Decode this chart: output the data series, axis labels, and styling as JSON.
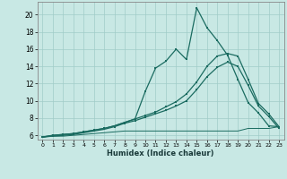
{
  "xlabel": "Humidex (Indice chaleur)",
  "bg_color": "#c8e8e4",
  "grid_color": "#a0ccc8",
  "line_color": "#1a6b60",
  "xlim": [
    -0.5,
    23.5
  ],
  "ylim": [
    5.5,
    21.5
  ],
  "xticks": [
    0,
    1,
    2,
    3,
    4,
    5,
    6,
    7,
    8,
    9,
    10,
    11,
    12,
    13,
    14,
    15,
    16,
    17,
    18,
    19,
    20,
    21,
    22,
    23
  ],
  "yticks": [
    6,
    8,
    10,
    12,
    14,
    16,
    18,
    20
  ],
  "line1_x": [
    0,
    1,
    2,
    3,
    4,
    5,
    6,
    7,
    8,
    9,
    10,
    11,
    12,
    13,
    14,
    15,
    16,
    17,
    18,
    19,
    20,
    21,
    22,
    23
  ],
  "line1_y": [
    5.8,
    6.0,
    6.1,
    6.2,
    6.4,
    6.6,
    6.8,
    7.1,
    7.5,
    7.9,
    11.1,
    13.8,
    14.6,
    16.0,
    14.8,
    20.8,
    18.5,
    17.0,
    15.3,
    12.5,
    9.8,
    8.6,
    7.1,
    7.0
  ],
  "line2_x": [
    0,
    1,
    2,
    3,
    4,
    5,
    6,
    7,
    8,
    9,
    10,
    11,
    12,
    13,
    14,
    15,
    16,
    17,
    18,
    19,
    20,
    21,
    22,
    23
  ],
  "line2_y": [
    5.8,
    6.0,
    6.1,
    6.2,
    6.4,
    6.6,
    6.8,
    7.1,
    7.5,
    7.9,
    8.3,
    8.7,
    9.3,
    9.9,
    10.8,
    12.2,
    14.0,
    15.2,
    15.5,
    15.2,
    12.5,
    9.7,
    8.5,
    7.0
  ],
  "line3_x": [
    0,
    1,
    2,
    3,
    4,
    5,
    6,
    7,
    8,
    9,
    10,
    11,
    12,
    13,
    14,
    15,
    16,
    17,
    18,
    19,
    20,
    21,
    22,
    23
  ],
  "line3_y": [
    5.8,
    5.9,
    6.0,
    6.1,
    6.3,
    6.5,
    6.7,
    7.0,
    7.4,
    7.7,
    8.1,
    8.5,
    8.9,
    9.4,
    10.0,
    11.3,
    12.8,
    13.9,
    14.5,
    14.0,
    11.8,
    9.4,
    8.2,
    6.8
  ],
  "line4_x": [
    0,
    1,
    2,
    3,
    4,
    5,
    6,
    7,
    8,
    9,
    10,
    11,
    12,
    13,
    14,
    15,
    16,
    17,
    18,
    19,
    20,
    21,
    22,
    23
  ],
  "line4_y": [
    5.8,
    5.9,
    5.9,
    6.0,
    6.1,
    6.2,
    6.3,
    6.4,
    6.5,
    6.5,
    6.5,
    6.5,
    6.5,
    6.5,
    6.5,
    6.5,
    6.5,
    6.5,
    6.5,
    6.5,
    6.8,
    6.8,
    6.8,
    7.0
  ]
}
